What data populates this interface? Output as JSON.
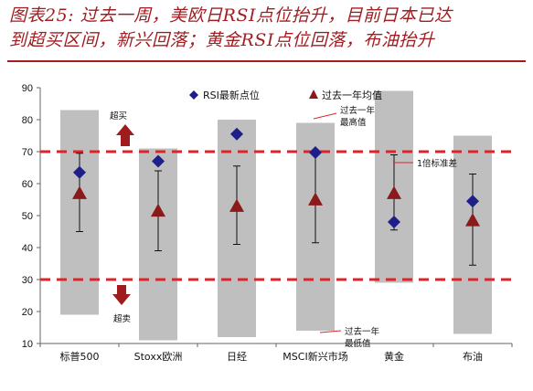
{
  "title_line1": "图表25: 过去一周，美欧日RSI点位抬升，目前日本已达",
  "title_line2": "到超买区间，新兴回落；黄金RSI点位回落，布油抬升",
  "colors": {
    "title": "#a11d21",
    "range_bar": "#bfbfbf",
    "rsi_marker": "#1f1f8a",
    "avg_marker": "#8b1a1a",
    "threshold_line": "#d9262a",
    "arrow": "#a01c1c"
  },
  "chart_data": {
    "type": "range-marker",
    "categories": [
      "标普500",
      "Stoxx欧洲",
      "日经",
      "MSCI新兴市场",
      "黄金",
      "布油"
    ],
    "ylim": [
      10,
      90
    ],
    "yticks": [
      10,
      20,
      30,
      40,
      50,
      60,
      70,
      80,
      90
    ],
    "range_low": [
      19,
      11,
      12,
      14,
      29,
      13
    ],
    "range_high": [
      83,
      71,
      80,
      79,
      89,
      75
    ],
    "rsi_latest": [
      63.5,
      67,
      75.5,
      69.7,
      48,
      54.5
    ],
    "avg_one_year": [
      57,
      51.5,
      53,
      55,
      57,
      48.5
    ],
    "std_low": [
      45,
      39,
      41,
      41.5,
      45.5,
      34.5
    ],
    "std_high": [
      69.5,
      64,
      65.5,
      70.5,
      69,
      63
    ],
    "thresholds": [
      70,
      30
    ],
    "legend": {
      "rsi": "RSI最新点位",
      "avg": "过去一年均值"
    },
    "annotations": {
      "overbought": "超买",
      "oversold": "超卖",
      "one_year_high": [
        "过去一年",
        "最高值"
      ],
      "one_year_low": [
        "过去一年",
        "最低值"
      ],
      "one_std": "1倍标准差"
    }
  }
}
